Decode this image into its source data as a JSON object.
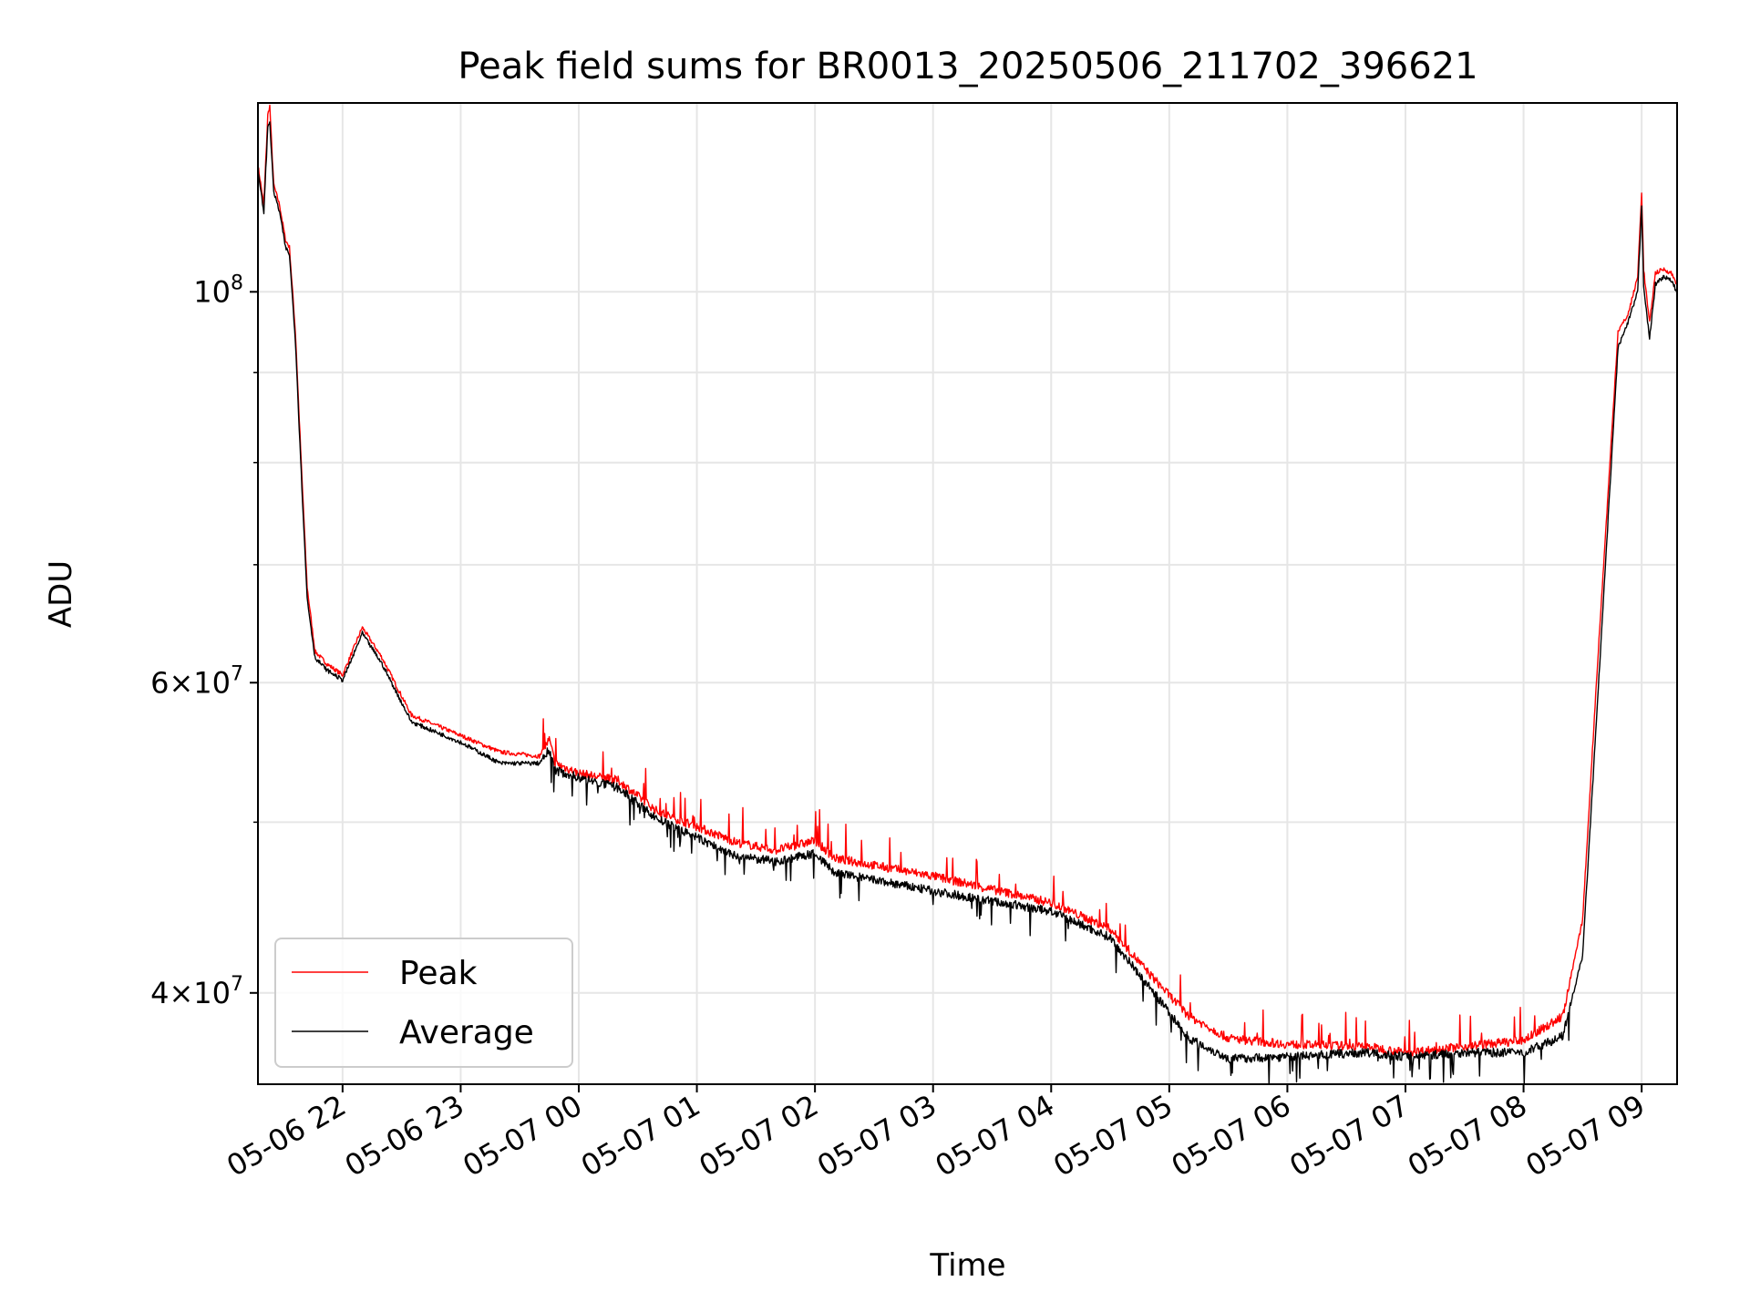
{
  "chart_data": {
    "type": "line",
    "title": "Peak field sums for BR0013_20250506_211702_396621",
    "xlabel": "Time",
    "ylabel": "ADU",
    "yscale": "log",
    "grid": true,
    "legend_position": "lower-left",
    "xlim": [
      "2025-05-06 21:17",
      "2025-05-07 09:18"
    ],
    "ylim": [
      35500000,
      128000000
    ],
    "x_ticks": [
      {
        "t": "2025-05-06 22:00",
        "label": "05-06 22"
      },
      {
        "t": "2025-05-06 23:00",
        "label": "05-06 23"
      },
      {
        "t": "2025-05-07 00:00",
        "label": "05-07 00"
      },
      {
        "t": "2025-05-07 01:00",
        "label": "05-07 01"
      },
      {
        "t": "2025-05-07 02:00",
        "label": "05-07 02"
      },
      {
        "t": "2025-05-07 03:00",
        "label": "05-07 03"
      },
      {
        "t": "2025-05-07 04:00",
        "label": "05-07 04"
      },
      {
        "t": "2025-05-07 05:00",
        "label": "05-07 05"
      },
      {
        "t": "2025-05-07 06:00",
        "label": "05-07 06"
      },
      {
        "t": "2025-05-07 07:00",
        "label": "05-07 07"
      },
      {
        "t": "2025-05-07 08:00",
        "label": "05-07 08"
      },
      {
        "t": "2025-05-07 09:00",
        "label": "05-07 09"
      }
    ],
    "y_major_ticks": [
      {
        "value": 40000000,
        "base": "4",
        "exp": "7"
      },
      {
        "value": 60000000,
        "base": "6",
        "exp": "7"
      },
      {
        "value": 100000000,
        "base": "10",
        "exp": "8"
      }
    ],
    "y_minor_ticks": [
      50000000,
      70000000,
      80000000,
      90000000
    ],
    "series": [
      {
        "name": "Peak",
        "color": "#ff0000",
        "points": [
          [
            "2025-05-06 21:17",
            118000000
          ],
          [
            "2025-05-06 21:20",
            112000000
          ],
          [
            "2025-05-06 21:22",
            126000000
          ],
          [
            "2025-05-06 21:23",
            127500000
          ],
          [
            "2025-05-06 21:25",
            115000000
          ],
          [
            "2025-05-06 21:28",
            112000000
          ],
          [
            "2025-05-06 21:31",
            107000000
          ],
          [
            "2025-05-06 21:33",
            106000000
          ],
          [
            "2025-05-06 21:36",
            95000000
          ],
          [
            "2025-05-06 21:39",
            80000000
          ],
          [
            "2025-05-06 21:42",
            68000000
          ],
          [
            "2025-05-06 21:46",
            62500000
          ],
          [
            "2025-05-06 21:52",
            61500000
          ],
          [
            "2025-05-06 22:00",
            60600000
          ],
          [
            "2025-05-06 22:05",
            62500000
          ],
          [
            "2025-05-06 22:10",
            64500000
          ],
          [
            "2025-05-06 22:20",
            62000000
          ],
          [
            "2025-05-06 22:35",
            57500000
          ],
          [
            "2025-05-06 23:00",
            56000000
          ],
          [
            "2025-05-06 23:20",
            54800000
          ],
          [
            "2025-05-06 23:40",
            54500000
          ],
          [
            "2025-05-06 23:45",
            55700000
          ],
          [
            "2025-05-06 23:48",
            54000000
          ],
          [
            "2025-05-07 00:00",
            53300000
          ],
          [
            "2025-05-07 00:20",
            52800000
          ],
          [
            "2025-05-07 00:40",
            50700000
          ],
          [
            "2025-05-07 01:00",
            49700000
          ],
          [
            "2025-05-07 01:20",
            48700000
          ],
          [
            "2025-05-07 01:40",
            48200000
          ],
          [
            "2025-05-07 02:00",
            48800000
          ],
          [
            "2025-05-07 02:10",
            47700000
          ],
          [
            "2025-05-07 03:00",
            46600000
          ],
          [
            "2025-05-07 04:00",
            45000000
          ],
          [
            "2025-05-07 04:30",
            43500000
          ],
          [
            "2025-05-07 04:50",
            41000000
          ],
          [
            "2025-05-07 05:10",
            38800000
          ],
          [
            "2025-05-07 05:30",
            37700000
          ],
          [
            "2025-05-07 06:00",
            37400000
          ],
          [
            "2025-05-07 06:40",
            37300000
          ],
          [
            "2025-05-07 07:00",
            37000000
          ],
          [
            "2025-05-07 07:30",
            37300000
          ],
          [
            "2025-05-07 08:00",
            37600000
          ],
          [
            "2025-05-07 08:20",
            38800000
          ],
          [
            "2025-05-07 08:30",
            44000000
          ],
          [
            "2025-05-07 08:37",
            60000000
          ],
          [
            "2025-05-07 08:48",
            95000000
          ],
          [
            "2025-05-07 08:53",
            97000000
          ],
          [
            "2025-05-07 08:58",
            102000000
          ],
          [
            "2025-05-07 09:00",
            114000000
          ],
          [
            "2025-05-07 09:01",
            103000000
          ],
          [
            "2025-05-07 09:04",
            96000000
          ],
          [
            "2025-05-07 09:07",
            102500000
          ],
          [
            "2025-05-07 09:11",
            103000000
          ],
          [
            "2025-05-07 09:15",
            102500000
          ],
          [
            "2025-05-07 09:18",
            101000000
          ]
        ]
      },
      {
        "name": "Average",
        "color": "#000000",
        "points": [
          [
            "2025-05-06 21:17",
            117000000
          ],
          [
            "2025-05-06 21:20",
            111000000
          ],
          [
            "2025-05-06 21:22",
            124000000
          ],
          [
            "2025-05-06 21:23",
            125000000
          ],
          [
            "2025-05-06 21:25",
            114000000
          ],
          [
            "2025-05-06 21:28",
            111000000
          ],
          [
            "2025-05-06 21:31",
            106000000
          ],
          [
            "2025-05-06 21:33",
            105000000
          ],
          [
            "2025-05-06 21:36",
            94000000
          ],
          [
            "2025-05-06 21:39",
            79000000
          ],
          [
            "2025-05-06 21:42",
            67000000
          ],
          [
            "2025-05-06 21:46",
            62000000
          ],
          [
            "2025-05-06 21:52",
            61000000
          ],
          [
            "2025-05-06 22:00",
            60200000
          ],
          [
            "2025-05-06 22:05",
            62000000
          ],
          [
            "2025-05-06 22:10",
            64000000
          ],
          [
            "2025-05-06 22:20",
            61500000
          ],
          [
            "2025-05-06 22:35",
            57000000
          ],
          [
            "2025-05-06 23:00",
            55500000
          ],
          [
            "2025-05-06 23:20",
            54000000
          ],
          [
            "2025-05-06 23:40",
            54000000
          ],
          [
            "2025-05-06 23:45",
            55000000
          ],
          [
            "2025-05-06 23:48",
            53500000
          ],
          [
            "2025-05-07 00:00",
            53000000
          ],
          [
            "2025-05-07 00:20",
            52300000
          ],
          [
            "2025-05-07 00:40",
            50200000
          ],
          [
            "2025-05-07 01:00",
            49000000
          ],
          [
            "2025-05-07 01:20",
            47800000
          ],
          [
            "2025-05-07 01:40",
            47500000
          ],
          [
            "2025-05-07 02:00",
            48000000
          ],
          [
            "2025-05-07 02:10",
            46800000
          ],
          [
            "2025-05-07 03:00",
            45700000
          ],
          [
            "2025-05-07 04:00",
            44500000
          ],
          [
            "2025-05-07 04:30",
            43000000
          ],
          [
            "2025-05-07 04:50",
            40300000
          ],
          [
            "2025-05-07 05:10",
            37700000
          ],
          [
            "2025-05-07 05:30",
            36700000
          ],
          [
            "2025-05-07 06:00",
            36800000
          ],
          [
            "2025-05-07 06:40",
            37000000
          ],
          [
            "2025-05-07 07:00",
            36800000
          ],
          [
            "2025-05-07 07:30",
            37000000
          ],
          [
            "2025-05-07 08:00",
            37000000
          ],
          [
            "2025-05-07 08:20",
            37800000
          ],
          [
            "2025-05-07 08:30",
            42000000
          ],
          [
            "2025-05-07 08:37",
            57000000
          ],
          [
            "2025-05-07 08:48",
            93000000
          ],
          [
            "2025-05-07 08:53",
            96000000
          ],
          [
            "2025-05-07 08:58",
            100000000
          ],
          [
            "2025-05-07 09:00",
            112000000
          ],
          [
            "2025-05-07 09:01",
            101000000
          ],
          [
            "2025-05-07 09:04",
            94000000
          ],
          [
            "2025-05-07 09:07",
            101000000
          ],
          [
            "2025-05-07 09:11",
            102000000
          ],
          [
            "2025-05-07 09:15",
            101500000
          ],
          [
            "2025-05-07 09:18",
            100000000
          ]
        ]
      }
    ]
  }
}
